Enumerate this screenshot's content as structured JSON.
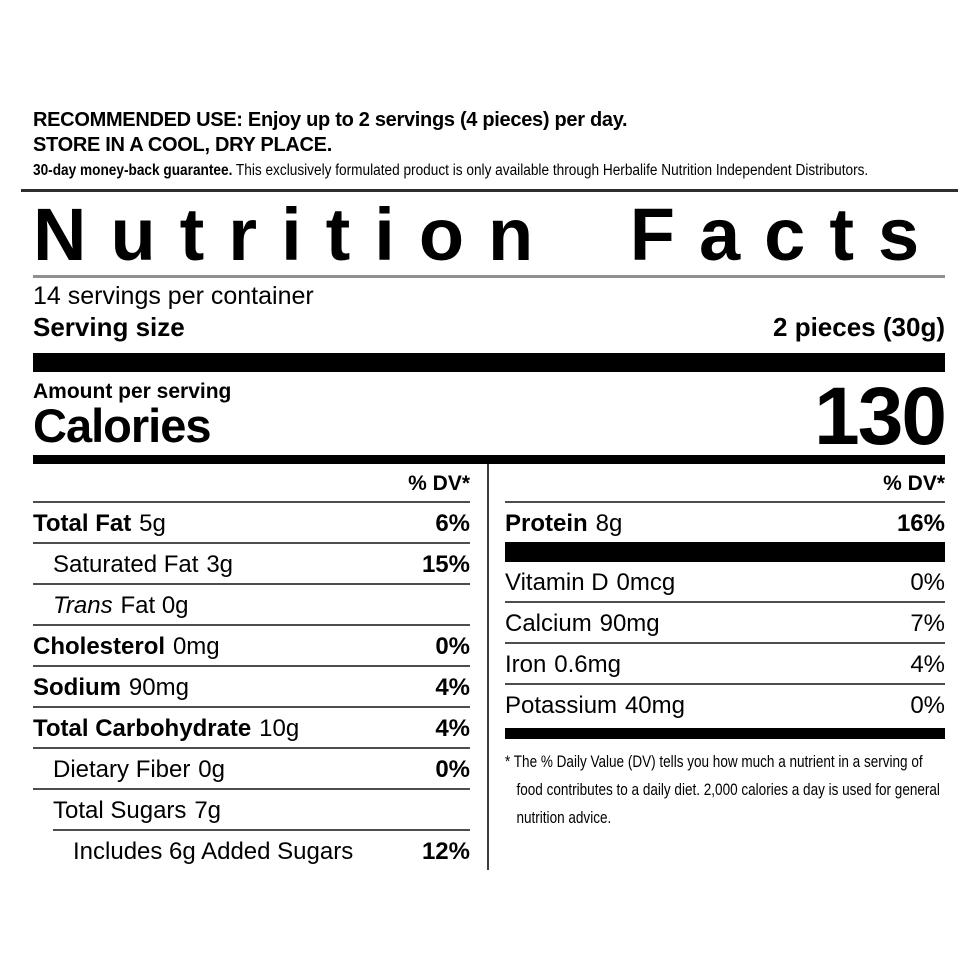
{
  "intro": {
    "line1": "RECOMMENDED USE: Enjoy up to 2 servings (4 pieces) per day.",
    "line2": "STORE IN A COOL, DRY PLACE.",
    "guarantee_bold": "30-day money-back guarantee.",
    "guarantee_rest": " This exclusively formulated product is only available through Herbalife Nutrition Independent Distributors."
  },
  "label": {
    "title": "Nutrition Facts",
    "servings_per_container": "14 servings per container",
    "serving_size_label": "Serving size",
    "serving_size_value": "2 pieces (30g)",
    "amount_per_serving": "Amount per serving",
    "calories_label": "Calories",
    "calories_value": "130",
    "dv_header": "% DV*",
    "footnote_lines": [
      "* The % Daily Value (DV) tells you how much a nutrient in a serving of",
      "food contributes to a daily diet. 2,000 calories a day is used for general",
      "nutrition advice."
    ]
  },
  "nutrients_left": [
    {
      "name": "Total Fat",
      "amount": "5g",
      "dv": "6%"
    },
    {
      "name": "Saturated Fat",
      "amount": "3g",
      "dv": "15%"
    },
    {
      "name": "Trans",
      "amount": "Fat 0g",
      "dv": ""
    },
    {
      "name": "Cholesterol",
      "amount": "0mg",
      "dv": "0%"
    },
    {
      "name": "Sodium",
      "amount": "90mg",
      "dv": "4%"
    },
    {
      "name": "Total Carbohydrate",
      "amount": "10g",
      "dv": "4%"
    },
    {
      "name": "Dietary Fiber",
      "amount": "0g",
      "dv": "0%"
    },
    {
      "name": "Total Sugars",
      "amount": "7g",
      "dv": ""
    },
    {
      "name": "Includes 6g Added Sugars",
      "amount": "",
      "dv": "12%"
    }
  ],
  "nutrients_right": [
    {
      "name": "Protein",
      "amount": "8g",
      "dv": "16%"
    },
    {
      "name": "Vitamin D",
      "amount": "0mcg",
      "dv": "0%"
    },
    {
      "name": "Calcium",
      "amount": "90mg",
      "dv": "7%"
    },
    {
      "name": "Iron",
      "amount": "0.6mg",
      "dv": "4%"
    },
    {
      "name": "Potassium",
      "amount": "40mg",
      "dv": "0%"
    }
  ]
}
